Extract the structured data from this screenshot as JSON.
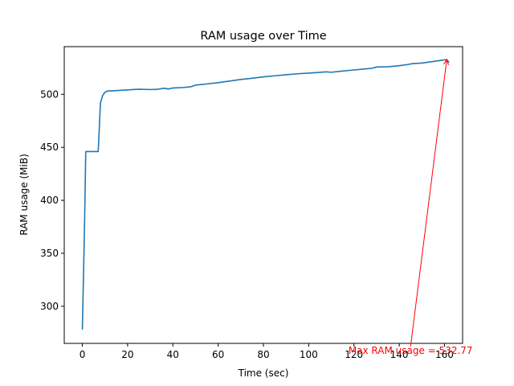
{
  "chart_data": {
    "type": "line",
    "title": "RAM usage over Time",
    "xlabel": "Time (sec)",
    "ylabel": "RAM usage (MiB)",
    "xlim": [
      -8,
      168
    ],
    "ylim": [
      265,
      545
    ],
    "xticks": [
      0,
      20,
      40,
      60,
      80,
      100,
      120,
      140,
      160
    ],
    "yticks": [
      300,
      350,
      400,
      450,
      500
    ],
    "grid": false,
    "colors": {
      "line": "#1f77b4",
      "annotation": "#ff0000",
      "axes": "#000000"
    },
    "series": [
      {
        "x": [
          0,
          1,
          1.5,
          7,
          8,
          9,
          10,
          11,
          12,
          15,
          20,
          25,
          30,
          33,
          36,
          38,
          40,
          45,
          48,
          50,
          55,
          60,
          65,
          70,
          75,
          80,
          85,
          90,
          95,
          100,
          105,
          108,
          110,
          115,
          120,
          125,
          128,
          130,
          135,
          140,
          144,
          146,
          150,
          155,
          160,
          161,
          162
        ],
        "y": [
          278,
          380,
          446,
          446,
          492,
          499,
          502,
          503,
          503.2,
          503.5,
          504.2,
          504.8,
          504.5,
          504.7,
          505.8,
          505.0,
          506.0,
          506.5,
          507.2,
          508.7,
          509.8,
          511.0,
          512.5,
          514.0,
          515.2,
          516.5,
          517.5,
          518.5,
          519.4,
          520.0,
          520.8,
          521.2,
          520.8,
          522.0,
          523.0,
          524.0,
          524.6,
          525.8,
          526.0,
          527.0,
          528.2,
          529.0,
          529.5,
          531.0,
          532.5,
          532.77,
          530.0
        ]
      }
    ],
    "annotation": {
      "text": "Max RAM usage = 532.77",
      "xy": [
        161,
        532.77
      ],
      "xytext": [
        145,
        262
      ]
    }
  }
}
